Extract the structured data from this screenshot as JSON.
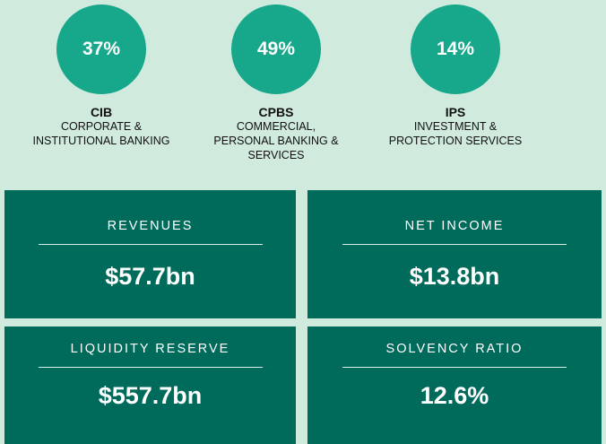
{
  "segments": [
    {
      "share": "37%",
      "code": "CIB",
      "name": [
        "CORPORATE &",
        "INSTITUTIONAL BANKING"
      ]
    },
    {
      "share": "49%",
      "code": "CPBS",
      "name": [
        "COMMERCIAL,",
        "PERSONAL BANKING &",
        "SERVICES"
      ]
    },
    {
      "share": "14%",
      "code": "IPS",
      "name": [
        "INVESTMENT &",
        "PROTECTION SERVICES"
      ]
    }
  ],
  "kpis": [
    {
      "label": "REVENUES",
      "value": "$57.7bn"
    },
    {
      "label": "NET INCOME",
      "value": "$13.8bn"
    },
    {
      "label": "LIQUIDITY RESERVE",
      "value": "$557.7bn"
    },
    {
      "label": "SOLVENCY RATIO",
      "value": "12.6%"
    }
  ]
}
